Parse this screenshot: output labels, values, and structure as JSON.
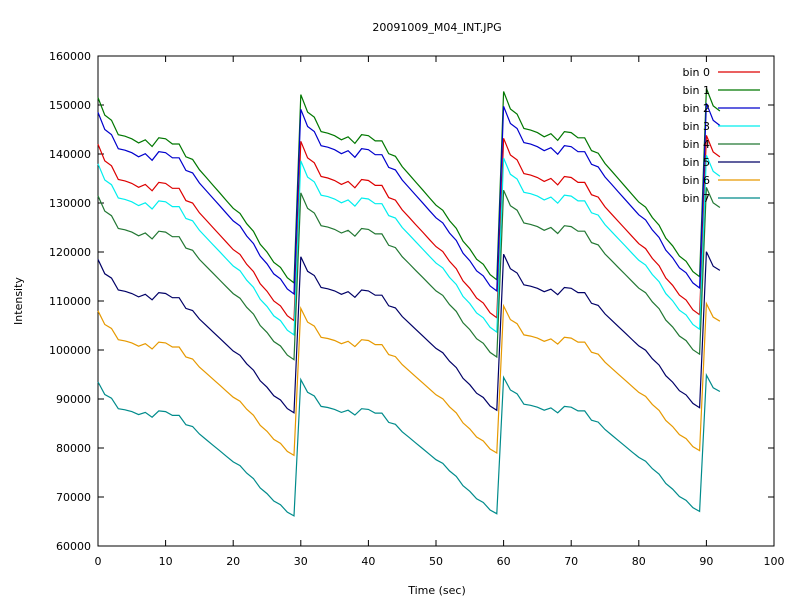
{
  "chart_data": {
    "type": "line",
    "title": "20091009_M04_INT.JPG",
    "xlabel": "Time (sec)",
    "ylabel": "Intensity",
    "xlim": [
      0,
      100
    ],
    "ylim": [
      60000,
      160000
    ],
    "xticks": [
      0,
      10,
      20,
      30,
      40,
      50,
      60,
      70,
      80,
      90,
      100
    ],
    "yticks": [
      60000,
      70000,
      80000,
      90000,
      100000,
      110000,
      120000,
      130000,
      140000,
      150000,
      160000
    ],
    "grid": false,
    "legend_position": "top-right",
    "cycle_period": 30,
    "base_profile": {
      "t": [
        0,
        1,
        2,
        3,
        4,
        5,
        6,
        7,
        8,
        9,
        10,
        11,
        12,
        13,
        14,
        15,
        16,
        17,
        18,
        19,
        20,
        21,
        22,
        23,
        24,
        25,
        26,
        27,
        28,
        29
      ],
      "dev": [
        0,
        -3400,
        -4400,
        -7200,
        -7500,
        -8000,
        -8800,
        -8200,
        -9500,
        -7800,
        -8000,
        -9000,
        -9000,
        -11500,
        -12000,
        -14000,
        -15500,
        -17000,
        -18500,
        -20000,
        -21500,
        -22500,
        -24500,
        -26000,
        -28500,
        -30000,
        -32000,
        -33000,
        -35000,
        -36000
      ]
    },
    "series": [
      {
        "name": "bin 0",
        "color": "#dd0000",
        "start": 142000,
        "scale": 1.0
      },
      {
        "name": "bin 1",
        "color": "#007700",
        "start": 151500,
        "scale": 1.05
      },
      {
        "name": "bin 2",
        "color": "#0000cc",
        "start": 148500,
        "scale": 1.03
      },
      {
        "name": "bin 3",
        "color": "#00eeee",
        "start": 138000,
        "scale": 0.97
      },
      {
        "name": "bin 4",
        "color": "#227733",
        "start": 131500,
        "scale": 0.93
      },
      {
        "name": "bin 5",
        "color": "#000066",
        "start": 118500,
        "scale": 0.87
      },
      {
        "name": "bin 6",
        "color": "#e69900",
        "start": 108000,
        "scale": 0.82
      },
      {
        "name": "bin 7",
        "color": "#008b8b",
        "start": 93500,
        "scale": 0.76
      }
    ]
  }
}
